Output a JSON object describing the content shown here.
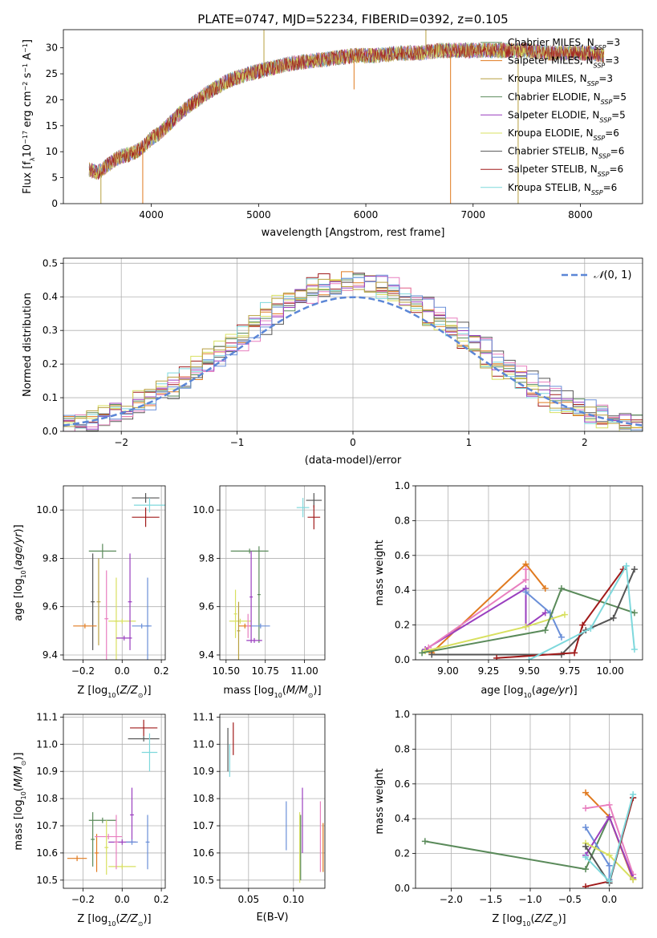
{
  "title": "PLATE=0747, MJD=52234, FIBERID=0392, z=0.105",
  "colors": [
    "#6a8fd8",
    "#e07a1f",
    "#b8a040",
    "#5a8a5a",
    "#9a3fbf",
    "#d8e060",
    "#555555",
    "#a01a1a",
    "#7ed8dc",
    "#e87fbf"
  ],
  "chart_data": [
    {
      "id": "spectrum",
      "type": "line",
      "xlabel": "wavelength [Angstrom, rest frame]",
      "ylabel": "Flux [f_λ10^-17 erg cm^-2 s^-1 A^-1]",
      "xlim": [
        3180,
        8580
      ],
      "ylim": [
        0,
        33.5
      ],
      "xticks": [
        4000,
        5000,
        6000,
        7000,
        8000
      ],
      "yticks": [
        0,
        5,
        10,
        15,
        20,
        25,
        30
      ],
      "x_range_data": [
        3420,
        8220
      ],
      "series": [
        {
          "name": "Chabrier MILES, N_SSP=3",
          "color_index": 3
        },
        {
          "name": "Salpeter MILES, N_SSP=3",
          "color_index": 1
        },
        {
          "name": "Kroupa MILES, N_SSP=3",
          "color_index": 2
        },
        {
          "name": "Chabrier ELODIE, N_SSP=5",
          "color_index": 3
        },
        {
          "name": "Salpeter ELODIE, N_SSP=5",
          "color_index": 4
        },
        {
          "name": "Kroupa ELODIE, N_SSP=6",
          "color_index": 5
        },
        {
          "name": "Chabrier STELIB, N_SSP=6",
          "color_index": 6
        },
        {
          "name": "Salpeter STELIB, N_SSP=6",
          "color_index": 7
        },
        {
          "name": "Kroupa STELIB, N_SSP=6",
          "color_index": 8
        }
      ],
      "continuum_x": [
        3420,
        3500,
        3600,
        3700,
        3800,
        3900,
        4000,
        4100,
        4200,
        4300,
        4400,
        4500,
        4700,
        4900,
        5100,
        5300,
        5500,
        5700,
        5900,
        6100,
        6300,
        6500,
        6700,
        6900,
        7100,
        7300,
        7500,
        7700,
        7900,
        8100,
        8220
      ],
      "continuum_y": [
        6.5,
        6.0,
        7.5,
        9.0,
        9.5,
        10.5,
        12.5,
        14.0,
        16.0,
        18.0,
        19.5,
        21.0,
        23.5,
        25.0,
        26.0,
        27.0,
        27.5,
        28.0,
        28.5,
        28.5,
        29.0,
        29.0,
        29.5,
        29.5,
        29.5,
        29.5,
        29.5,
        29.0,
        29.0,
        29.0,
        28.5
      ],
      "spikes": [
        {
          "x": 5050,
          "y": 33.5
        },
        {
          "x": 5890,
          "y": 22.0
        },
        {
          "x": 6560,
          "y": 33.5
        },
        {
          "x": 6790,
          "y": 0
        },
        {
          "x": 7420,
          "y": 0
        },
        {
          "x": 3920,
          "y": 0
        },
        {
          "x": 3530,
          "y": 0
        }
      ]
    },
    {
      "id": "residuals",
      "type": "bar",
      "xlabel": "(data-model)/error",
      "ylabel": "Normed distribution",
      "xlim": [
        -2.5,
        2.5
      ],
      "ylim": [
        0,
        0.515
      ],
      "xticks": [
        -2,
        -1,
        0,
        1,
        2
      ],
      "yticks": [
        0.0,
        0.1,
        0.2,
        0.3,
        0.4,
        0.5
      ],
      "legend": "$\\mathcal{N}(0,1)$",
      "bin_width": 0.1,
      "histogram_variants": 10
    },
    {
      "id": "age_vs_Z",
      "type": "scatter",
      "xlabel": "Z [log10(Z/Z☉)]",
      "ylabel": "age  [log10(age/yr)]",
      "xlim": [
        -0.3,
        0.22
      ],
      "ylim": [
        9.38,
        10.1
      ],
      "xticks": [
        -0.2,
        0.0,
        0.2
      ],
      "yticks": [
        9.4,
        9.6,
        9.8,
        10.0
      ],
      "points": [
        {
          "x": 0.12,
          "y": 10.05,
          "xerr": 0.07,
          "yerr": 0.02,
          "c": 6
        },
        {
          "x": 0.14,
          "y": 10.02,
          "xerr": 0.08,
          "yerr": 0.03,
          "c": 8
        },
        {
          "x": 0.12,
          "y": 9.97,
          "xerr": 0.07,
          "yerr": 0.04,
          "c": 7
        },
        {
          "x": -0.1,
          "y": 9.83,
          "xerr": 0.07,
          "yerr": 0.03,
          "c": 3
        },
        {
          "x": -0.15,
          "y": 9.62,
          "xerr": 0.01,
          "yerr": 0.2,
          "c": 6
        },
        {
          "x": -0.19,
          "y": 9.52,
          "xerr": 0.06,
          "yerr": 0.01,
          "c": 1
        },
        {
          "x": -0.12,
          "y": 9.62,
          "xerr": 0.01,
          "yerr": 0.18,
          "c": 2
        },
        {
          "x": -0.08,
          "y": 9.55,
          "xerr": 0.01,
          "yerr": 0.2,
          "c": 9
        },
        {
          "x": -0.03,
          "y": 9.54,
          "xerr": 0.01,
          "yerr": 0.18,
          "c": 5
        },
        {
          "x": 0.0,
          "y": 9.54,
          "xerr": 0.07,
          "yerr": 0.01,
          "c": 5
        },
        {
          "x": 0.04,
          "y": 9.62,
          "xerr": 0.01,
          "yerr": 0.2,
          "c": 4
        },
        {
          "x": 0.01,
          "y": 9.47,
          "xerr": 0.04,
          "yerr": 0.01,
          "c": 4
        },
        {
          "x": 0.13,
          "y": 9.52,
          "xerr": 0.01,
          "yerr": 0.2,
          "c": 0
        },
        {
          "x": 0.1,
          "y": 9.52,
          "xerr": 0.05,
          "yerr": 0.01,
          "c": 0
        }
      ]
    },
    {
      "id": "age_vs_mass",
      "type": "scatter",
      "xlabel": "mass [log10(M/M☉)]",
      "ylabel": "",
      "xlim": [
        10.46,
        11.13
      ],
      "ylim": [
        9.38,
        10.1
      ],
      "xticks": [
        10.5,
        10.75,
        11.0
      ],
      "yticks": [
        9.4,
        9.6,
        9.8,
        10.0
      ],
      "points": [
        {
          "x": 11.06,
          "y": 10.04,
          "xerr": 0.05,
          "yerr": 0.03,
          "c": 6
        },
        {
          "x": 10.99,
          "y": 10.01,
          "xerr": 0.04,
          "yerr": 0.04,
          "c": 8
        },
        {
          "x": 11.06,
          "y": 9.97,
          "xerr": 0.04,
          "yerr": 0.05,
          "c": 7
        },
        {
          "x": 10.65,
          "y": 9.83,
          "xerr": 0.12,
          "yerr": 0.01,
          "c": 3
        },
        {
          "x": 10.71,
          "y": 9.65,
          "xerr": 0.01,
          "yerr": 0.2,
          "c": 3
        },
        {
          "x": 10.56,
          "y": 9.57,
          "xerr": 0.01,
          "yerr": 0.1,
          "c": 5
        },
        {
          "x": 10.59,
          "y": 9.54,
          "xerr": 0.07,
          "yerr": 0.01,
          "c": 5
        },
        {
          "x": 10.58,
          "y": 9.5,
          "xerr": 0.01,
          "yerr": 0.12,
          "c": 2
        },
        {
          "x": 10.62,
          "y": 9.52,
          "xerr": 0.04,
          "yerr": 0.01,
          "c": 1
        },
        {
          "x": 10.66,
          "y": 9.64,
          "xerr": 0.01,
          "yerr": 0.19,
          "c": 4
        },
        {
          "x": 10.68,
          "y": 9.46,
          "xerr": 0.05,
          "yerr": 0.01,
          "c": 4
        },
        {
          "x": 10.72,
          "y": 9.52,
          "xerr": 0.06,
          "yerr": 0.01,
          "c": 0
        },
        {
          "x": 10.64,
          "y": 9.52,
          "xerr": 0.01,
          "yerr": 0.05,
          "c": 9
        }
      ]
    },
    {
      "id": "massweight_vs_age",
      "type": "line",
      "xlabel": "age  [log10(age/yr)]",
      "ylabel": "mass weight",
      "xlim": [
        8.8,
        10.2
      ],
      "ylim": [
        0,
        1
      ],
      "xticks": [
        9.0,
        9.25,
        9.5,
        9.75,
        10.0
      ],
      "yticks": [
        0.0,
        0.2,
        0.4,
        0.6,
        0.8,
        1.0
      ],
      "series": [
        {
          "c": 1,
          "x": [
            8.9,
            9.48,
            9.6
          ],
          "y": [
            0.04,
            0.55,
            0.41
          ]
        },
        {
          "c": 4,
          "x": [
            8.86,
            9.48,
            9.48,
            9.6
          ],
          "y": [
            0.06,
            0.41,
            0.19,
            0.27
          ]
        },
        {
          "c": 9,
          "x": [
            8.88,
            9.48,
            9.48
          ],
          "y": [
            0.07,
            0.46,
            0.52
          ]
        },
        {
          "c": 0,
          "x": [
            9.48,
            9.63,
            9.7
          ],
          "y": [
            0.39,
            0.27,
            0.13
          ]
        },
        {
          "c": 5,
          "x": [
            8.86,
            9.48,
            9.72
          ],
          "y": [
            0.05,
            0.19,
            0.26
          ]
        },
        {
          "c": 3,
          "x": [
            8.84,
            9.6,
            9.7,
            10.15
          ],
          "y": [
            0.04,
            0.17,
            0.41,
            0.27
          ]
        },
        {
          "c": 6,
          "x": [
            8.9,
            9.7,
            9.85,
            10.02,
            10.15
          ],
          "y": [
            0.03,
            0.03,
            0.17,
            0.24,
            0.52
          ]
        },
        {
          "c": 7,
          "x": [
            9.3,
            9.78,
            9.83,
            10.08
          ],
          "y": [
            0.01,
            0.04,
            0.2,
            0.52
          ]
        },
        {
          "c": 8,
          "x": [
            9.5,
            9.88,
            10.1,
            10.15
          ],
          "y": [
            0.0,
            0.18,
            0.54,
            0.06
          ]
        }
      ]
    },
    {
      "id": "mass_vs_Z",
      "type": "scatter",
      "xlabel": "Z [log10(Z/Z☉)]",
      "ylabel": "mass [log10(M/M☉)]",
      "xlim": [
        -0.3,
        0.22
      ],
      "ylim": [
        10.47,
        11.11
      ],
      "xticks": [
        -0.2,
        0.0,
        0.2
      ],
      "yticks": [
        10.5,
        10.6,
        10.7,
        10.8,
        10.9,
        11.0,
        11.1
      ],
      "points": [
        {
          "x": 0.11,
          "y": 11.06,
          "xerr": 0.07,
          "yerr": 0.03,
          "c": 7
        },
        {
          "x": 0.11,
          "y": 11.02,
          "xerr": 0.08,
          "yerr": 0.01,
          "c": 6
        },
        {
          "x": 0.14,
          "y": 10.97,
          "xerr": 0.04,
          "yerr": 0.07,
          "c": 8
        },
        {
          "x": -0.23,
          "y": 10.58,
          "xerr": 0.05,
          "yerr": 0.01,
          "c": 1
        },
        {
          "x": -0.13,
          "y": 10.6,
          "xerr": 0.01,
          "yerr": 0.07,
          "c": 1
        },
        {
          "x": -0.1,
          "y": 10.72,
          "xerr": 0.07,
          "yerr": 0.01,
          "c": 3
        },
        {
          "x": -0.15,
          "y": 10.65,
          "xerr": 0.01,
          "yerr": 0.1,
          "c": 3
        },
        {
          "x": -0.07,
          "y": 10.66,
          "xerr": 0.07,
          "yerr": 0.01,
          "c": 9
        },
        {
          "x": -0.08,
          "y": 10.62,
          "xerr": 0.01,
          "yerr": 0.1,
          "c": 5
        },
        {
          "x": 0.0,
          "y": 10.55,
          "xerr": 0.07,
          "yerr": 0.01,
          "c": 5
        },
        {
          "x": 0.0,
          "y": 10.64,
          "xerr": 0.07,
          "yerr": 0.01,
          "c": 4
        },
        {
          "x": 0.05,
          "y": 10.74,
          "xerr": 0.01,
          "yerr": 0.1,
          "c": 4
        },
        {
          "x": 0.13,
          "y": 10.64,
          "xerr": 0.01,
          "yerr": 0.1,
          "c": 0
        },
        {
          "x": 0.05,
          "y": 10.64,
          "xerr": 0.03,
          "yerr": 0.01,
          "c": 0
        },
        {
          "x": -0.03,
          "y": 10.64,
          "xerr": 0.01,
          "yerr": 0.1,
          "c": 9
        }
      ]
    },
    {
      "id": "mass_vs_ebv",
      "type": "scatter",
      "xlabel": "E(B-V)",
      "ylabel": "",
      "xlim": [
        0.018,
        0.135
      ],
      "ylim": [
        10.47,
        11.11
      ],
      "xticks": [
        0.05,
        0.1
      ],
      "yticks": [
        10.5,
        10.6,
        10.7,
        10.8,
        10.9,
        11.0,
        11.1
      ],
      "points": [
        {
          "x": 0.033,
          "y": 11.02,
          "xerr": 0.0,
          "yerr": 0.06,
          "c": 7
        },
        {
          "x": 0.027,
          "y": 10.98,
          "xerr": 0.0,
          "yerr": 0.08,
          "c": 6
        },
        {
          "x": 0.029,
          "y": 10.94,
          "xerr": 0.0,
          "yerr": 0.06,
          "c": 8
        },
        {
          "x": 0.092,
          "y": 10.7,
          "xerr": 0.0,
          "yerr": 0.09,
          "c": 0
        },
        {
          "x": 0.107,
          "y": 10.62,
          "xerr": 0.0,
          "yerr": 0.13,
          "c": 5
        },
        {
          "x": 0.108,
          "y": 10.62,
          "xerr": 0.0,
          "yerr": 0.12,
          "c": 3
        },
        {
          "x": 0.11,
          "y": 10.72,
          "xerr": 0.0,
          "yerr": 0.12,
          "c": 4
        },
        {
          "x": 0.13,
          "y": 10.66,
          "xerr": 0.0,
          "yerr": 0.13,
          "c": 9
        },
        {
          "x": 0.133,
          "y": 10.62,
          "xerr": 0.0,
          "yerr": 0.09,
          "c": 1
        }
      ]
    },
    {
      "id": "massweight_vs_Z",
      "type": "line",
      "xlabel": "Z [log10(Z/Z☉)]",
      "ylabel": "mass weight",
      "xlim": [
        -2.45,
        0.42
      ],
      "ylim": [
        0,
        1
      ],
      "xticks": [
        -2.0,
        -1.5,
        -1.0,
        -0.5,
        0.0
      ],
      "yticks": [
        0.0,
        0.2,
        0.4,
        0.6,
        0.8,
        1.0
      ],
      "series": [
        {
          "c": 3,
          "x": [
            -2.33,
            -0.3,
            0.0,
            0.3
          ],
          "y": [
            0.27,
            0.11,
            0.41,
            0.05
          ]
        },
        {
          "c": 1,
          "x": [
            -0.3,
            0.0,
            0.3
          ],
          "y": [
            0.55,
            0.41,
            0.05
          ]
        },
        {
          "c": 9,
          "x": [
            -0.3,
            0.0,
            0.3
          ],
          "y": [
            0.46,
            0.48,
            0.08
          ]
        },
        {
          "c": 0,
          "x": [
            -0.3,
            0.0,
            0.0
          ],
          "y": [
            0.35,
            0.13,
            0.05
          ]
        },
        {
          "c": 4,
          "x": [
            -0.3,
            0.0,
            0.3
          ],
          "y": [
            0.19,
            0.41,
            0.06
          ]
        },
        {
          "c": 5,
          "x": [
            -0.3,
            0.0,
            0.3
          ],
          "y": [
            0.26,
            0.19,
            0.05
          ]
        },
        {
          "c": 6,
          "x": [
            -0.3,
            0.0,
            0.3
          ],
          "y": [
            0.24,
            0.03,
            0.52
          ]
        },
        {
          "c": 7,
          "x": [
            -0.3,
            0.0,
            0.3
          ],
          "y": [
            0.01,
            0.04,
            0.52
          ]
        },
        {
          "c": 8,
          "x": [
            -0.3,
            0.0,
            0.3
          ],
          "y": [
            0.18,
            0.04,
            0.54
          ]
        }
      ]
    }
  ]
}
